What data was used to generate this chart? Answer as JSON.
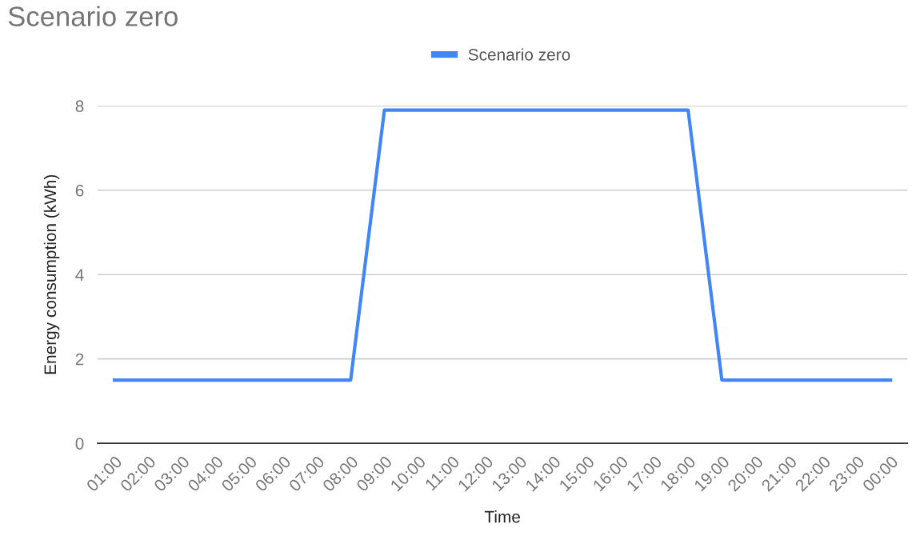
{
  "chart_data": {
    "type": "line",
    "title": "Scenario zero",
    "xlabel": "Time",
    "ylabel": "Energy consumption (kWh)",
    "categories": [
      "01:00",
      "02:00",
      "03:00",
      "04:00",
      "05:00",
      "06:00",
      "07:00",
      "08:00",
      "09:00",
      "10:00",
      "11:00",
      "12:00",
      "13:00",
      "14:00",
      "15:00",
      "16:00",
      "17:00",
      "18:00",
      "19:00",
      "20:00",
      "21:00",
      "22:00",
      "23:00",
      "00:00"
    ],
    "series": [
      {
        "name": "Scenario zero",
        "color": "#4285f4",
        "values": [
          1.5,
          1.5,
          1.5,
          1.5,
          1.5,
          1.5,
          1.5,
          1.5,
          7.9,
          7.9,
          7.9,
          7.9,
          7.9,
          7.9,
          7.9,
          7.9,
          7.9,
          7.9,
          1.5,
          1.5,
          1.5,
          1.5,
          1.5,
          1.5
        ]
      }
    ],
    "ylim": [
      0,
      8
    ],
    "yticks": [
      0,
      2,
      4,
      6,
      8
    ],
    "grid": "y",
    "legend": "top",
    "marker": "none",
    "line_style": "solid"
  }
}
